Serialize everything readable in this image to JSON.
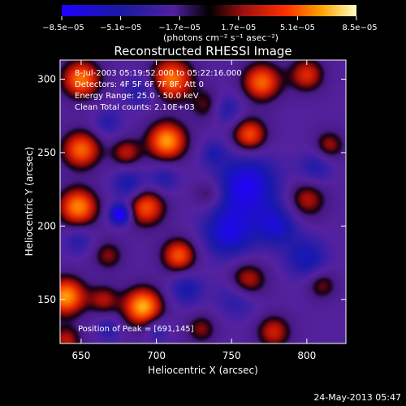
{
  "chart_data": {
    "type": "heatmap",
    "title": "Reconstructed RHESSI Image",
    "xlabel": "Heliocentric X (arcsec)",
    "ylabel": "Heliocentric Y (arcsec)",
    "xlim": [
      636,
      826
    ],
    "ylim": [
      120,
      313
    ],
    "xticks": [
      650,
      700,
      750,
      800
    ],
    "yticks": [
      150,
      200,
      250,
      300
    ],
    "colorbar": {
      "range": [
        -8.5e-05,
        8.5e-05
      ],
      "tick_labels": [
        "−8.5e−05",
        "−5.1e−05",
        "−1.7e−05",
        "1.7e−05",
        "5.1e−05",
        "8.5e−05"
      ],
      "tick_values": [
        -8.5e-05,
        -5.1e-05,
        -1.7e-05,
        1.7e-05,
        5.1e-05,
        8.5e-05
      ],
      "units_label": "(photons cm⁻² s⁻¹ asec⁻²)"
    },
    "annotations": {
      "time_range": "8-Jul-2003 05:19:52.000 to 05:22:16.000",
      "detectors": "Detectors: 4F 5F 6F 7F 8F, Att 0",
      "energy_range": "Energy Range: 25.0 - 50.0 keV",
      "clean_counts": "Clean     Total counts: 2.10E+03",
      "peak_position": "Position of Peak = [691,145]"
    },
    "peak": {
      "x": 691,
      "y": 145
    },
    "blobs": [
      {
        "x": 691,
        "y": 145,
        "s": 9,
        "a": 1.0
      },
      {
        "x": 640,
        "y": 152,
        "s": 9,
        "a": 0.95
      },
      {
        "x": 650,
        "y": 300,
        "s": 9,
        "a": 0.85
      },
      {
        "x": 710,
        "y": 300,
        "s": 10,
        "a": 0.85
      },
      {
        "x": 770,
        "y": 298,
        "s": 9,
        "a": 0.8
      },
      {
        "x": 800,
        "y": 303,
        "s": 8,
        "a": 0.6
      },
      {
        "x": 735,
        "y": 282,
        "s": 8,
        "a": 0.45
      },
      {
        "x": 707,
        "y": 258,
        "s": 9,
        "a": 0.95
      },
      {
        "x": 762,
        "y": 262,
        "s": 8,
        "a": 0.75
      },
      {
        "x": 650,
        "y": 252,
        "s": 9,
        "a": 0.8
      },
      {
        "x": 680,
        "y": 250,
        "s": 7,
        "a": 0.5
      },
      {
        "x": 648,
        "y": 213,
        "s": 9,
        "a": 0.9
      },
      {
        "x": 693,
        "y": 213,
        "s": 9,
        "a": 0.75
      },
      {
        "x": 735,
        "y": 222,
        "s": 7,
        "a": 0.35
      },
      {
        "x": 800,
        "y": 218,
        "s": 9,
        "a": 0.5
      },
      {
        "x": 815,
        "y": 255,
        "s": 7,
        "a": 0.45
      },
      {
        "x": 715,
        "y": 180,
        "s": 8,
        "a": 0.75
      },
      {
        "x": 668,
        "y": 180,
        "s": 7,
        "a": 0.4
      },
      {
        "x": 760,
        "y": 162,
        "s": 9,
        "a": 0.7
      },
      {
        "x": 665,
        "y": 150,
        "s": 7,
        "a": 0.45
      },
      {
        "x": 730,
        "y": 130,
        "s": 7,
        "a": 0.4
      },
      {
        "x": 810,
        "y": 160,
        "s": 7,
        "a": 0.4
      },
      {
        "x": 640,
        "y": 122,
        "s": 7,
        "a": 0.5
      },
      {
        "x": 778,
        "y": 128,
        "s": 8,
        "a": 0.55
      },
      {
        "x": 676,
        "y": 208,
        "s": 5,
        "a": -0.9
      },
      {
        "x": 760,
        "y": 227,
        "s": 15,
        "a": -0.7
      },
      {
        "x": 748,
        "y": 195,
        "s": 12,
        "a": -0.6
      },
      {
        "x": 780,
        "y": 200,
        "s": 10,
        "a": -0.5
      },
      {
        "x": 745,
        "y": 280,
        "s": 8,
        "a": -0.45
      },
      {
        "x": 682,
        "y": 228,
        "s": 8,
        "a": -0.45
      },
      {
        "x": 705,
        "y": 232,
        "s": 7,
        "a": -0.35
      },
      {
        "x": 755,
        "y": 153,
        "s": 10,
        "a": -0.45
      },
      {
        "x": 720,
        "y": 157,
        "s": 8,
        "a": -0.4
      },
      {
        "x": 800,
        "y": 178,
        "s": 10,
        "a": -0.45
      },
      {
        "x": 806,
        "y": 240,
        "s": 8,
        "a": -0.35
      },
      {
        "x": 690,
        "y": 292,
        "s": 8,
        "a": -0.35
      },
      {
        "x": 668,
        "y": 270,
        "s": 7,
        "a": -0.3
      },
      {
        "x": 738,
        "y": 250,
        "s": 6,
        "a": -0.3
      },
      {
        "x": 648,
        "y": 190,
        "s": 7,
        "a": -0.3
      },
      {
        "x": 700,
        "y": 130,
        "s": 6,
        "a": -0.3
      },
      {
        "x": 668,
        "y": 130,
        "s": 6,
        "a": -0.3
      }
    ]
  },
  "footer": {
    "date": "24-May-2013 05:47"
  }
}
